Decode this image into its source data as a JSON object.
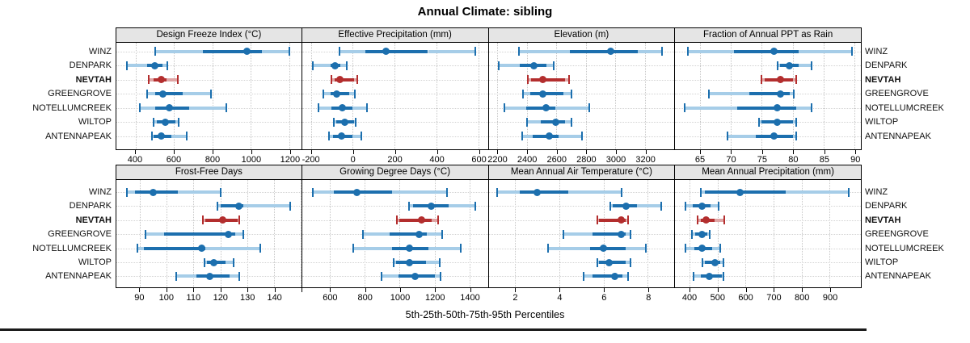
{
  "title": "Annual Climate: sibling",
  "caption": "5th-25th-50th-75th-95th Percentiles",
  "sites": [
    "WINZ",
    "DENPARK",
    "NEVTAH",
    "GREENGROVE",
    "NOTELLUMCREEK",
    "WILTOP",
    "ANTENNAPEAK"
  ],
  "highlight_site": "NEVTAH",
  "colors": {
    "blue": "#1c6fae",
    "blue_light": "#a6cde8",
    "red": "#b32e2e",
    "red_light": "#dfa5a5",
    "grid": "#c6c6c6",
    "header_bg": "#e5e5e5",
    "border": "#000000",
    "text": "#111111"
  },
  "chart_data": {
    "type": "dotplot",
    "percentile_labels": [
      "5th",
      "25th",
      "50th",
      "75th",
      "95th"
    ],
    "rows": [
      {
        "panels": [
          {
            "title": "Design Freeze Index (°C)",
            "xlim": [
              300,
              1262
            ],
            "ticks": [
              400,
              600,
              800,
              1000,
              1200
            ],
            "tick_labels": [
              "400",
              "600",
              "800",
              "1000",
              "1200"
            ],
            "values": [
              [
                500,
                750,
                980,
                1055,
                1200
              ],
              [
                355,
                460,
                500,
                540,
                565
              ],
              [
                470,
                495,
                535,
                560,
                620
              ],
              [
                460,
                500,
                540,
                645,
                790
              ],
              [
                420,
                500,
                575,
                680,
                870
              ],
              [
                495,
                510,
                555,
                605,
                625
              ],
              [
                485,
                495,
                535,
                585,
                665
              ]
            ]
          },
          {
            "title": "Effective Precipitation (mm)",
            "xlim": [
              -242,
              646
            ],
            "ticks": [
              -200,
              0,
              200,
              400,
              600
            ],
            "tick_labels": [
              "-200",
              "0",
              "200",
              "400",
              "600"
            ],
            "values": [
              [
                -65,
                60,
                160,
                360,
                585
              ],
              [
                -190,
                -105,
                -85,
                -60,
                -30
              ],
              [
                -100,
                -85,
                -60,
                5,
                20
              ],
              [
                -140,
                -105,
                -75,
                -15,
                10
              ],
              [
                -165,
                -100,
                -50,
                0,
                70
              ],
              [
                -90,
                -80,
                -40,
                5,
                15
              ],
              [
                -115,
                -95,
                -55,
                0,
                40
              ]
            ]
          },
          {
            "title": "Elevation (m)",
            "xlim": [
              2140,
              3400
            ],
            "ticks": [
              2200,
              2400,
              2600,
              2800,
              3000,
              3200
            ],
            "tick_labels": [
              "2200",
              "2400",
              "2600",
              "2800",
              "3000",
              "3200"
            ],
            "values": [
              [
                2345,
                2690,
                2970,
                3150,
                3315
              ],
              [
                2210,
                2350,
                2445,
                2530,
                2580
              ],
              [
                2405,
                2430,
                2505,
                2660,
                2685
              ],
              [
                2375,
                2425,
                2510,
                2650,
                2700
              ],
              [
                2245,
                2395,
                2530,
                2595,
                2825
              ],
              [
                2400,
                2495,
                2595,
                2660,
                2700
              ],
              [
                2365,
                2440,
                2550,
                2615,
                2775
              ]
            ]
          },
          {
            "title": "Fraction of Annual PPT as Rain",
            "xlim": [
              61,
              91
            ],
            "ticks": [
              65,
              70,
              75,
              80,
              85,
              90
            ],
            "tick_labels": [
              "65",
              "70",
              "75",
              "80",
              "85",
              "90"
            ],
            "values": [
              [
                63,
                70.5,
                77,
                81,
                89.5
              ],
              [
                77.5,
                78,
                79.5,
                81,
                83
              ],
              [
                75,
                75.5,
                78,
                80,
                80.5
              ],
              [
                66.5,
                73,
                78,
                79.5,
                80.1
              ],
              [
                62.5,
                71,
                77.5,
                80.5,
                83
              ],
              [
                74.5,
                75,
                77.5,
                80,
                80.5
              ],
              [
                69.5,
                74,
                77,
                80,
                80.5
              ]
            ]
          }
        ]
      },
      {
        "panels": [
          {
            "title": "Frost-Free Days",
            "xlim": [
              81.2,
              150.2
            ],
            "ticks": [
              90,
              100,
              110,
              120,
              130,
              140,
              150
            ],
            "tick_labels": [
              "90",
              "100",
              "110",
              "120",
              "130",
              "140",
              ""
            ],
            "values": [
              [
                85,
                88,
                95,
                104,
                120
              ],
              [
                119,
                120,
                127,
                128.5,
                146
              ],
              [
                113.5,
                114.5,
                121,
                126.5,
                127
              ],
              [
                92,
                99,
                123,
                125.5,
                128.5
              ],
              [
                89,
                91.5,
                113,
                114.5,
                135
              ],
              [
                114,
                115,
                117.5,
                122,
                125
              ],
              [
                103.5,
                111,
                116,
                123.5,
                127
              ]
            ]
          },
          {
            "title": "Growing Degree Days (°C)",
            "xlim": [
              440,
              1506
            ],
            "ticks": [
              600,
              800,
              1000,
              1200,
              1400
            ],
            "tick_labels": [
              "600",
              "800",
              "1000",
              "1200",
              "1400"
            ],
            "values": [
              [
                500,
                620,
                755,
                955,
                1270
              ],
              [
                1055,
                1075,
                1180,
                1280,
                1435
              ],
              [
                985,
                1000,
                1125,
                1185,
                1220
              ],
              [
                790,
                940,
                1110,
                1155,
                1245
              ],
              [
                735,
                955,
                1055,
                1165,
                1350
              ],
              [
                965,
                980,
                1055,
                1150,
                1230
              ],
              [
                895,
                995,
                1090,
                1200,
                1235
              ]
            ]
          },
          {
            "title": "Mean Annual Air Temperature (°C)",
            "xlim": [
              0.8,
              9.2
            ],
            "ticks": [
              2,
              4,
              6,
              8
            ],
            "tick_labels": [
              "2",
              "4",
              "6",
              "8"
            ],
            "values": [
              [
                1.2,
                2.2,
                3.0,
                4.4,
                6.8
              ],
              [
                6.3,
                6.4,
                7.0,
                7.5,
                8.6
              ],
              [
                5.7,
                5.8,
                6.8,
                7.0,
                7.1
              ],
              [
                4.2,
                5.5,
                6.8,
                7.0,
                7.2
              ],
              [
                3.5,
                5.4,
                6.0,
                7.0,
                7.9
              ],
              [
                5.7,
                5.8,
                6.25,
                7.0,
                7.2
              ],
              [
                5.1,
                5.5,
                6.5,
                6.85,
                7.1
              ]
            ]
          },
          {
            "title": "Mean Annual Precipitation (mm)",
            "xlim": [
              349,
              1012
            ],
            "ticks": [
              400,
              500,
              600,
              700,
              800,
              900
            ],
            "tick_labels": [
              "400",
              "500",
              "600",
              "700",
              "800",
              "900"
            ],
            "values": [
              [
                440,
                455,
                580,
                745,
                970
              ],
              [
                385,
                412,
                446,
                475,
                505
              ],
              [
                430,
                440,
                460,
                490,
                525
              ],
              [
                410,
                420,
                445,
                463,
                472
              ],
              [
                385,
                417,
                446,
                480,
                511
              ],
              [
                445,
                455,
                490,
                510,
                520
              ],
              [
                415,
                440,
                470,
                515,
                522
              ]
            ]
          }
        ]
      }
    ]
  }
}
